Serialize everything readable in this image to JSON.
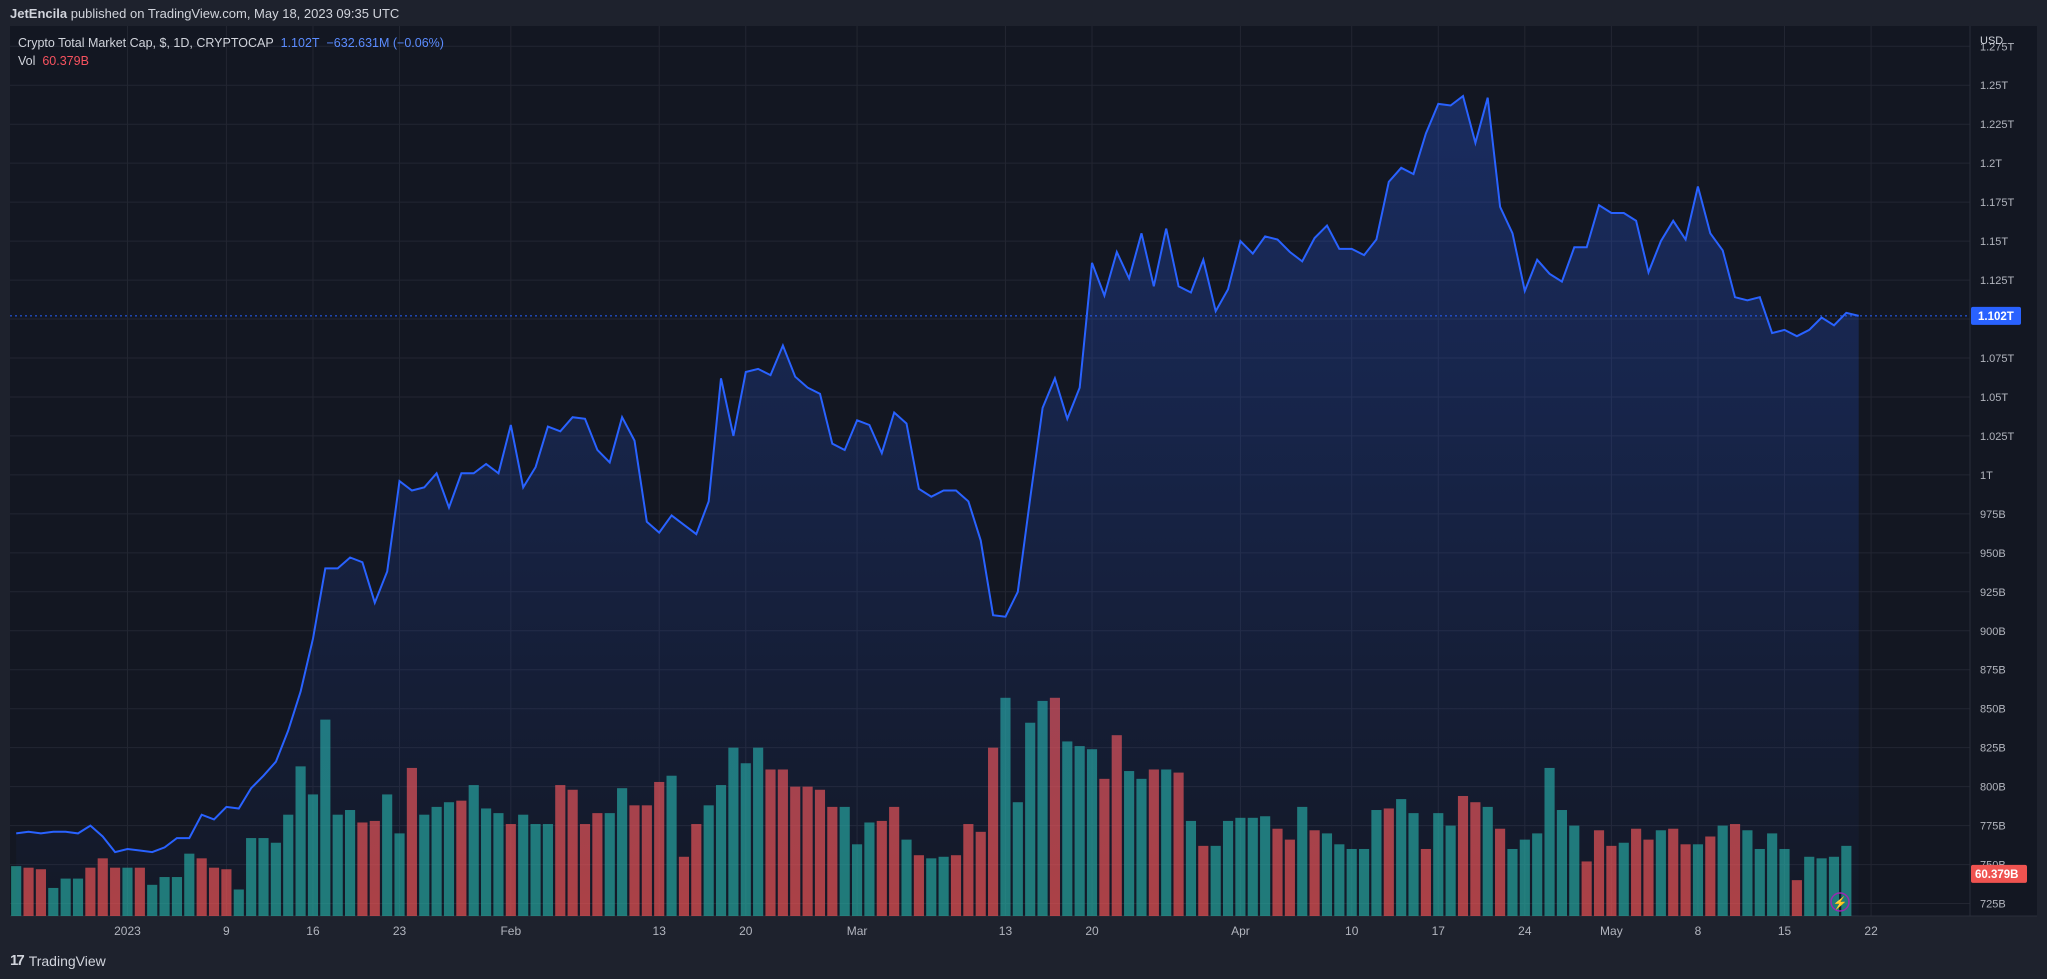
{
  "header": {
    "publisher": "JetEncila",
    "publish_text": "published on TradingView.com, May 18, 2023 09:35 UTC"
  },
  "legend": {
    "symbol": "Crypto Total Market Cap, $, 1D, CRYPTOCAP",
    "price": "1.102T",
    "change": "−632.631M (−0.06%)",
    "vol_label": "Vol",
    "vol_value": "60.379B"
  },
  "footer": {
    "logo_text": "TradingView",
    "logo_icon": "tradingview-logo-icon"
  },
  "colors": {
    "background": "#131722",
    "line": "#2962ff",
    "volume_up": "#26a69a",
    "volume_down": "#ef5350"
  },
  "chart_data": {
    "type": "area",
    "currency_label": "USD",
    "y_ticks": [
      "1.275T",
      "1.25T",
      "1.225T",
      "1.2T",
      "1.175T",
      "1.15T",
      "1.125T",
      "1.1T",
      "1.075T",
      "1.05T",
      "1.025T",
      "1T",
      "975B",
      "950B",
      "925B",
      "900B",
      "875B",
      "850B",
      "825B",
      "800B",
      "775B",
      "750B",
      "725B"
    ],
    "y_tick_values": [
      1275,
      1250,
      1225,
      1200,
      1175,
      1150,
      1125,
      1100,
      1075,
      1050,
      1025,
      1000,
      975,
      950,
      925,
      900,
      875,
      850,
      825,
      800,
      775,
      750,
      725
    ],
    "ylim": [
      717,
      1288
    ],
    "x_ticks": [
      {
        "label": "2023",
        "day": 9
      },
      {
        "label": "9",
        "day": 17
      },
      {
        "label": "16",
        "day": 24
      },
      {
        "label": "23",
        "day": 31
      },
      {
        "label": "Feb",
        "day": 40
      },
      {
        "label": "13",
        "day": 52
      },
      {
        "label": "20",
        "day": 59
      },
      {
        "label": "Mar",
        "day": 68
      },
      {
        "label": "13",
        "day": 80
      },
      {
        "label": "20",
        "day": 87
      },
      {
        "label": "Apr",
        "day": 99
      },
      {
        "label": "10",
        "day": 108
      },
      {
        "label": "17",
        "day": 115
      },
      {
        "label": "24",
        "day": 122
      },
      {
        "label": "May",
        "day": 129
      },
      {
        "label": "8",
        "day": 136
      },
      {
        "label": "15",
        "day": 143
      },
      {
        "label": "22",
        "day": 150
      }
    ],
    "x_range": [
      -0.5,
      158
    ],
    "last_price": 1102,
    "last_price_label": "1.102T",
    "last_volume_label": "60.379B",
    "series": [
      {
        "name": "Crypto Total Market Cap",
        "values": [
          770,
          771,
          770,
          771,
          771,
          770,
          775,
          768,
          758,
          760,
          759,
          758,
          761,
          767,
          767,
          782,
          779,
          787,
          786,
          799,
          807,
          816,
          836,
          861,
          895,
          940,
          940,
          947,
          944,
          918,
          938,
          996,
          990,
          992,
          1001,
          979,
          1001,
          1001,
          1007,
          1001,
          1032,
          992,
          1005,
          1031,
          1028,
          1037,
          1036,
          1016,
          1008,
          1037,
          1022,
          970,
          963,
          974,
          968,
          962,
          983,
          1062,
          1025,
          1066,
          1068,
          1064,
          1083,
          1063,
          1056,
          1052,
          1020,
          1016,
          1035,
          1032,
          1014,
          1040,
          1033,
          991,
          986,
          990,
          990,
          983,
          958,
          910,
          909,
          925,
          985,
          1043,
          1062,
          1036,
          1056,
          1136,
          1115,
          1143,
          1126,
          1155,
          1121,
          1158,
          1121,
          1117,
          1138,
          1105,
          1119,
          1150,
          1142,
          1153,
          1151,
          1143,
          1137,
          1152,
          1160,
          1145,
          1145,
          1141,
          1151,
          1188,
          1197,
          1193,
          1219,
          1238,
          1237,
          1243,
          1213,
          1242,
          1172,
          1155,
          1118,
          1138,
          1129,
          1124,
          1146,
          1146,
          1173,
          1168,
          1168,
          1163,
          1130,
          1150,
          1163,
          1151,
          1185,
          1155,
          1144,
          1114,
          1112,
          1114,
          1091,
          1093,
          1089,
          1093,
          1101,
          1096,
          1104,
          1102
        ]
      },
      {
        "name": "Vol",
        "unit": "B",
        "values": [
          749,
          748,
          747,
          735,
          741,
          741,
          748,
          754,
          748,
          748,
          748,
          737,
          742,
          742,
          757,
          754,
          748,
          747,
          734,
          767,
          767,
          764,
          782,
          813,
          795,
          843,
          782,
          785,
          777,
          778,
          795,
          770,
          812,
          782,
          787,
          790,
          791,
          801,
          786,
          783,
          776,
          782,
          776,
          776,
          801,
          798,
          776,
          783,
          783,
          799,
          788,
          788,
          803,
          807,
          755,
          776,
          788,
          801,
          825,
          815,
          825,
          811,
          811,
          800,
          800,
          798,
          787,
          787,
          763,
          777,
          778,
          787,
          766,
          756,
          754,
          755,
          756,
          776,
          771,
          825,
          857,
          790,
          841,
          855,
          857,
          829,
          826,
          824,
          805,
          833,
          810,
          805,
          811,
          811,
          809,
          778,
          762,
          762,
          778,
          780,
          780,
          781,
          773,
          766,
          787,
          772,
          770,
          763,
          760,
          760,
          785,
          786,
          792,
          783,
          760,
          783,
          775,
          794,
          790,
          787,
          773,
          760,
          766,
          770,
          812,
          785,
          775,
          752,
          772,
          762,
          764,
          773,
          766,
          772,
          773,
          763,
          763,
          768,
          775,
          776,
          772,
          760,
          770,
          760,
          740,
          755,
          754,
          755,
          762
        ],
        "up_down": [
          "u",
          "d",
          "d",
          "u",
          "u",
          "u",
          "d",
          "d",
          "d",
          "u",
          "d",
          "u",
          "u",
          "u",
          "u",
          "d",
          "d",
          "d",
          "u",
          "u",
          "u",
          "u",
          "u",
          "u",
          "u",
          "u",
          "u",
          "u",
          "d",
          "d",
          "u",
          "u",
          "d",
          "u",
          "u",
          "u",
          "d",
          "u",
          "u",
          "u",
          "d",
          "u",
          "u",
          "u",
          "d",
          "d",
          "d",
          "d",
          "u",
          "u",
          "d",
          "d",
          "d",
          "u",
          "d",
          "d",
          "u",
          "u",
          "u",
          "u",
          "u",
          "d",
          "d",
          "d",
          "d",
          "d",
          "d",
          "u",
          "u",
          "u",
          "d",
          "d",
          "u",
          "d",
          "u",
          "u",
          "d",
          "d",
          "d",
          "d",
          "u",
          "u",
          "u",
          "u",
          "d",
          "u",
          "u",
          "u",
          "d",
          "d",
          "u",
          "u",
          "d",
          "u",
          "d",
          "u",
          "d",
          "u",
          "u",
          "u",
          "u",
          "u",
          "d",
          "d",
          "u",
          "d",
          "u",
          "u",
          "u",
          "u",
          "u",
          "d",
          "u",
          "u",
          "d",
          "u",
          "u",
          "d",
          "d",
          "u",
          "d",
          "u",
          "u",
          "u",
          "u",
          "u",
          "u",
          "d",
          "d",
          "d",
          "u",
          "d",
          "d",
          "u",
          "d",
          "d",
          "u",
          "d",
          "u",
          "d",
          "u",
          "u",
          "u",
          "u",
          "d",
          "u",
          "u",
          "u",
          "u",
          "d"
        ]
      }
    ]
  }
}
